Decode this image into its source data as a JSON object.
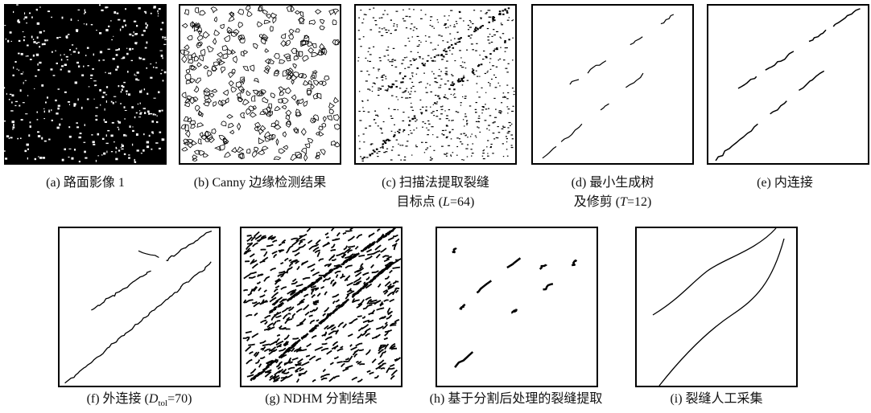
{
  "panels": [
    {
      "caption": [
        [
          "(a) 路面影像 1"
        ]
      ]
    },
    {
      "caption": [
        [
          "(b) Canny 边缘检测结果"
        ]
      ]
    },
    {
      "caption": [
        [
          "(c) 扫描法提取裂缝"
        ],
        [
          "目标点 (",
          "L",
          "=64)"
        ]
      ]
    },
    {
      "caption": [
        [
          "(d) 最小生成树"
        ],
        [
          "及修剪 (",
          "T",
          "=12)"
        ]
      ]
    },
    {
      "caption": [
        [
          "(e) 内连接"
        ]
      ]
    },
    {
      "caption": [
        [
          "(f) 外连接 (",
          "D",
          "tol",
          "=70)"
        ]
      ]
    },
    {
      "caption": [
        [
          "(g) NDHM 分割结果"
        ]
      ]
    },
    {
      "caption": [
        [
          "(h) 基于分割后处理的裂缝提取"
        ]
      ]
    },
    {
      "caption": [
        [
          "(i) 裂缝人工采集"
        ]
      ]
    }
  ]
}
